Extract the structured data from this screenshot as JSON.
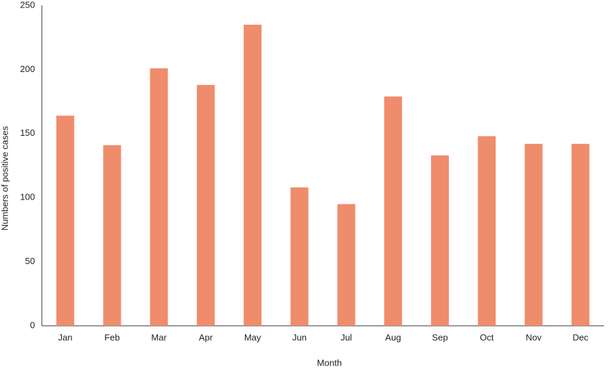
{
  "chart_data": {
    "type": "bar",
    "x_label": "Month",
    "y_label": "Numbers of positive cases",
    "categories": [
      "Jan",
      "Feb",
      "Mar",
      "Apr",
      "May",
      "Jun",
      "Jul",
      "Aug",
      "Sep",
      "Oct",
      "Nov",
      "Dec"
    ],
    "values": [
      164,
      141,
      201,
      188,
      235,
      108,
      95,
      179,
      133,
      148,
      142,
      142
    ],
    "color": "#ef8c6c",
    "ylim": [
      0,
      250
    ],
    "yticks": [
      0,
      50,
      100,
      150,
      200,
      250
    ],
    "grid": false
  }
}
